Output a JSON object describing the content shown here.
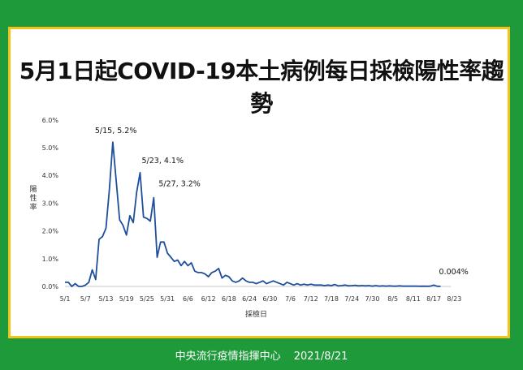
{
  "title": "5月1日起COVID-19本土病例每日採檢陽性率趨勢",
  "footer": {
    "org": "中央流行疫情指揮中心",
    "date": "2021/8/21"
  },
  "colors": {
    "background": "#1e9a3a",
    "frame": "#f3c21b",
    "line": "#1f4e9c"
  },
  "chart_data": {
    "type": "line",
    "title": "5月1日起COVID-19本土病例每日採檢陽性率趨勢",
    "xlabel": "採檢日",
    "ylabel": "陽性率",
    "ylim": [
      0,
      6
    ],
    "yticks": [
      "0.0%",
      "1.0%",
      "2.0%",
      "3.0%",
      "4.0%",
      "5.0%",
      "6.0%"
    ],
    "xticks": [
      "5/1",
      "5/7",
      "5/13",
      "5/19",
      "5/25",
      "5/31",
      "6/6",
      "6/12",
      "6/18",
      "6/24",
      "6/30",
      "7/6",
      "7/12",
      "7/18",
      "7/24",
      "7/30",
      "8/5",
      "8/11",
      "8/17",
      "8/23"
    ],
    "grid": false,
    "annotations": [
      {
        "text": "5/15, 5.2%",
        "day": 14,
        "value": 5.2
      },
      {
        "text": "5/23, 4.1%",
        "day": 22,
        "value": 4.1
      },
      {
        "text": "5/27, 3.2%",
        "day": 26,
        "value": 3.2
      },
      {
        "text": "0.004%",
        "day": 110,
        "value": 0.004
      }
    ],
    "series": [
      {
        "x_start": "5/1",
        "values": [
          0.15,
          0.15,
          0.0,
          0.1,
          0.0,
          0.0,
          0.05,
          0.15,
          0.6,
          0.25,
          1.7,
          1.8,
          2.1,
          3.5,
          5.2,
          3.8,
          2.4,
          2.2,
          1.85,
          2.55,
          2.3,
          3.4,
          4.1,
          2.5,
          2.45,
          2.35,
          3.2,
          1.05,
          1.6,
          1.6,
          1.2,
          1.05,
          0.9,
          0.95,
          0.75,
          0.9,
          0.75,
          0.85,
          0.55,
          0.5,
          0.5,
          0.45,
          0.35,
          0.5,
          0.55,
          0.65,
          0.3,
          0.4,
          0.35,
          0.2,
          0.15,
          0.2,
          0.3,
          0.2,
          0.15,
          0.15,
          0.1,
          0.15,
          0.2,
          0.1,
          0.15,
          0.2,
          0.15,
          0.1,
          0.05,
          0.15,
          0.1,
          0.05,
          0.1,
          0.05,
          0.08,
          0.05,
          0.08,
          0.05,
          0.05,
          0.05,
          0.03,
          0.05,
          0.03,
          0.07,
          0.02,
          0.03,
          0.05,
          0.02,
          0.03,
          0.04,
          0.02,
          0.03,
          0.02,
          0.03,
          0.01,
          0.03,
          0.01,
          0.02,
          0.01,
          0.02,
          0.01,
          0.01,
          0.02,
          0.01,
          0.01,
          0.01,
          0.01,
          0.01,
          0.005,
          0.01,
          0.005,
          0.01,
          0.05,
          0.005,
          0.004
        ]
      }
    ]
  }
}
